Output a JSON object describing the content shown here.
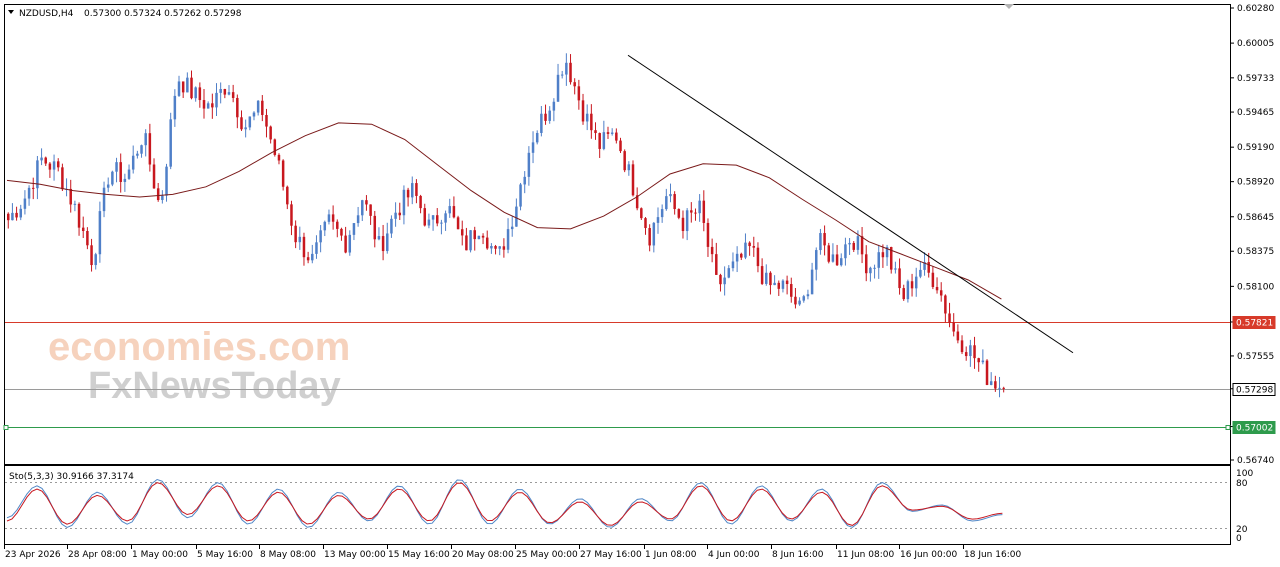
{
  "header": {
    "symbol": "NZDUSD,H4",
    "ohlc": "0.57300 0.57324 0.57262 0.57298"
  },
  "indicator": {
    "label": "Sto(5,3,3) 30.9166 37.3174",
    "levels": [
      "100",
      "80",
      "20",
      "0"
    ]
  },
  "watermark": {
    "line1": "economies.com",
    "line2": "FxNewsToday"
  },
  "colors": {
    "bull": "#4f7fc8",
    "bear": "#c8171e",
    "ma": "#7a1a1a",
    "resistance": "#d73a2a",
    "support": "#2e9b4c",
    "current": "#9a9a9a",
    "stoch_main": "#4f86c6",
    "stoch_signal": "#c8171e"
  },
  "chart_data": {
    "type": "candlestick",
    "ylim": [
      0.5674,
      0.6028
    ],
    "price_ticks": [
      "0.60280",
      "0.60005",
      "0.59733",
      "0.59465",
      "0.59190",
      "0.58920",
      "0.58645",
      "0.58375",
      "0.58100",
      "0.57821",
      "0.57555",
      "0.57298",
      "0.57002",
      "0.56740"
    ],
    "x_ticks": [
      "23 Apr 2026",
      "28 Apr 08:00",
      "1 May 00:00",
      "5 May 16:00",
      "8 May 08:00",
      "13 May 00:00",
      "15 May 16:00",
      "20 May 08:00",
      "25 May 00:00",
      "27 May 16:00",
      "1 Jun 08:00",
      "4 Jun 00:00",
      "8 Jun 16:00",
      "11 Jun 08:00",
      "16 Jun 00:00",
      "18 Jun 16:00"
    ],
    "levels": {
      "resistance": {
        "value": 0.57821,
        "label": "0.57821"
      },
      "current": {
        "value": 0.57298,
        "label": "0.57298"
      },
      "support": {
        "value": 0.57002,
        "label": "0.57002"
      }
    },
    "trendline": {
      "start": 0.5991,
      "end": 0.5758
    },
    "price_path": [
      0.5862,
      0.588,
      0.591,
      0.59,
      0.587,
      0.583,
      0.5902,
      0.5895,
      0.593,
      0.587,
      0.5975,
      0.596,
      0.595,
      0.597,
      0.5935,
      0.595,
      0.5905,
      0.585,
      0.583,
      0.586,
      0.5845,
      0.588,
      0.584,
      0.587,
      0.5885,
      0.5855,
      0.5875,
      0.584,
      0.586,
      0.583,
      0.587,
      0.5925,
      0.595,
      0.599,
      0.595,
      0.592,
      0.593,
      0.589,
      0.585,
      0.588,
      0.586,
      0.587,
      0.581,
      0.5825,
      0.584,
      0.581,
      0.581,
      0.579,
      0.5845,
      0.583,
      0.585,
      0.5825,
      0.584,
      0.58,
      0.5825,
      0.5815,
      0.5775,
      0.576,
      0.574,
      0.573
    ],
    "ma_path": [
      0.5893,
      0.589,
      0.5885,
      0.5882,
      0.588,
      0.5882,
      0.5888,
      0.59,
      0.5915,
      0.5928,
      0.5938,
      0.5937,
      0.5925,
      0.5905,
      0.5885,
      0.5868,
      0.5856,
      0.5855,
      0.5865,
      0.588,
      0.5898,
      0.5906,
      0.5905,
      0.5895,
      0.5878,
      0.5862,
      0.5845,
      0.5835,
      0.5825,
      0.5815,
      0.58
    ],
    "stoch_main": [
      30,
      80,
      15,
      70,
      20,
      90,
      30,
      85,
      20,
      75,
      15,
      70,
      25,
      80,
      20,
      90,
      20,
      75,
      20,
      60,
      15,
      60,
      25,
      85,
      20,
      80,
      25,
      75,
      15,
      85,
      40,
      50,
      25,
      35
    ],
    "stoch_signal": [
      25,
      75,
      20,
      65,
      25,
      85,
      35,
      80,
      25,
      70,
      20,
      65,
      28,
      75,
      25,
      85,
      25,
      70,
      22,
      55,
      18,
      55,
      28,
      80,
      25,
      75,
      28,
      70,
      18,
      80,
      42,
      48,
      28,
      37
    ]
  }
}
